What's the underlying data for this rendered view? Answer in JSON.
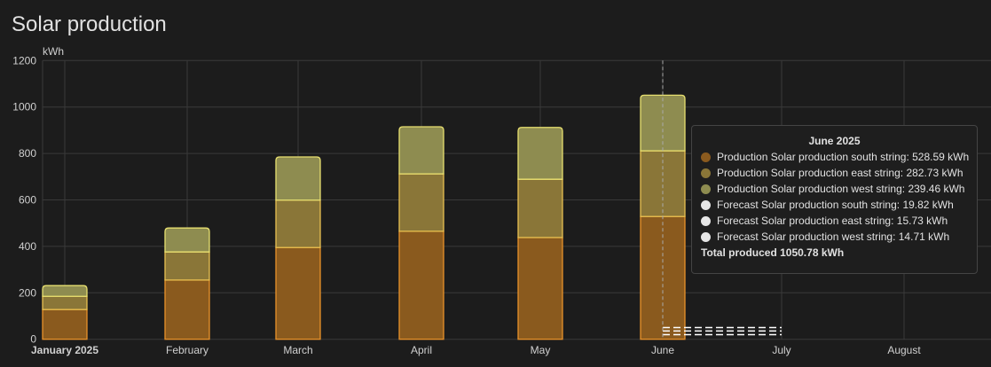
{
  "card": {
    "title": "Solar production"
  },
  "chart_data": {
    "type": "bar",
    "stacked": true,
    "ylabel": "kWh",
    "ylim": [
      0,
      1200
    ],
    "yticks": [
      0,
      200,
      400,
      600,
      800,
      1000,
      1200
    ],
    "grid": true,
    "categories": [
      "January 2025",
      "February",
      "March",
      "April",
      "May",
      "June"
    ],
    "xtick_labels": [
      "January 2025",
      "February",
      "March",
      "April",
      "May",
      "June",
      "July",
      "August"
    ],
    "series": [
      {
        "name": "Production Solar production south string",
        "values": [
          128,
          255,
          395,
          465,
          438,
          528.59
        ],
        "fill": "#8a5a1e",
        "stroke": "#e8922a"
      },
      {
        "name": "Production Solar production east string",
        "values": [
          57,
          121,
          204,
          247,
          251,
          282.73
        ],
        "fill": "#8a7638",
        "stroke": "#e8c050"
      },
      {
        "name": "Production Solar production west string",
        "values": [
          46,
          103,
          186,
          203,
          223,
          239.46
        ],
        "fill": "#8e8c50",
        "stroke": "#e8e070"
      }
    ],
    "forecast": {
      "from": "June",
      "to": "July",
      "style": "dashed",
      "color": "#ffffff",
      "series": [
        {
          "name": "Forecast Solar production south string",
          "value": 19.82
        },
        {
          "name": "Forecast Solar production east string",
          "value": 15.73
        },
        {
          "name": "Forecast Solar production west string",
          "value": 14.71
        }
      ]
    }
  },
  "tooltip": {
    "title": "June 2025",
    "rows": [
      {
        "label": "Production Solar production south string: 528.59 kWh",
        "color": "#8a5a1e"
      },
      {
        "label": "Production Solar production east string: 282.73 kWh",
        "color": "#8a7638"
      },
      {
        "label": "Production Solar production west string: 239.46 kWh",
        "color": "#8e8c50"
      },
      {
        "label": "Forecast Solar production south string: 19.82 kWh",
        "color": "#e6e6e6"
      },
      {
        "label": "Forecast Solar production east string: 15.73 kWh",
        "color": "#e6e6e6"
      },
      {
        "label": "Forecast Solar production west string: 14.71 kWh",
        "color": "#e6e6e6"
      }
    ],
    "total": "Total produced 1050.78 kWh"
  }
}
